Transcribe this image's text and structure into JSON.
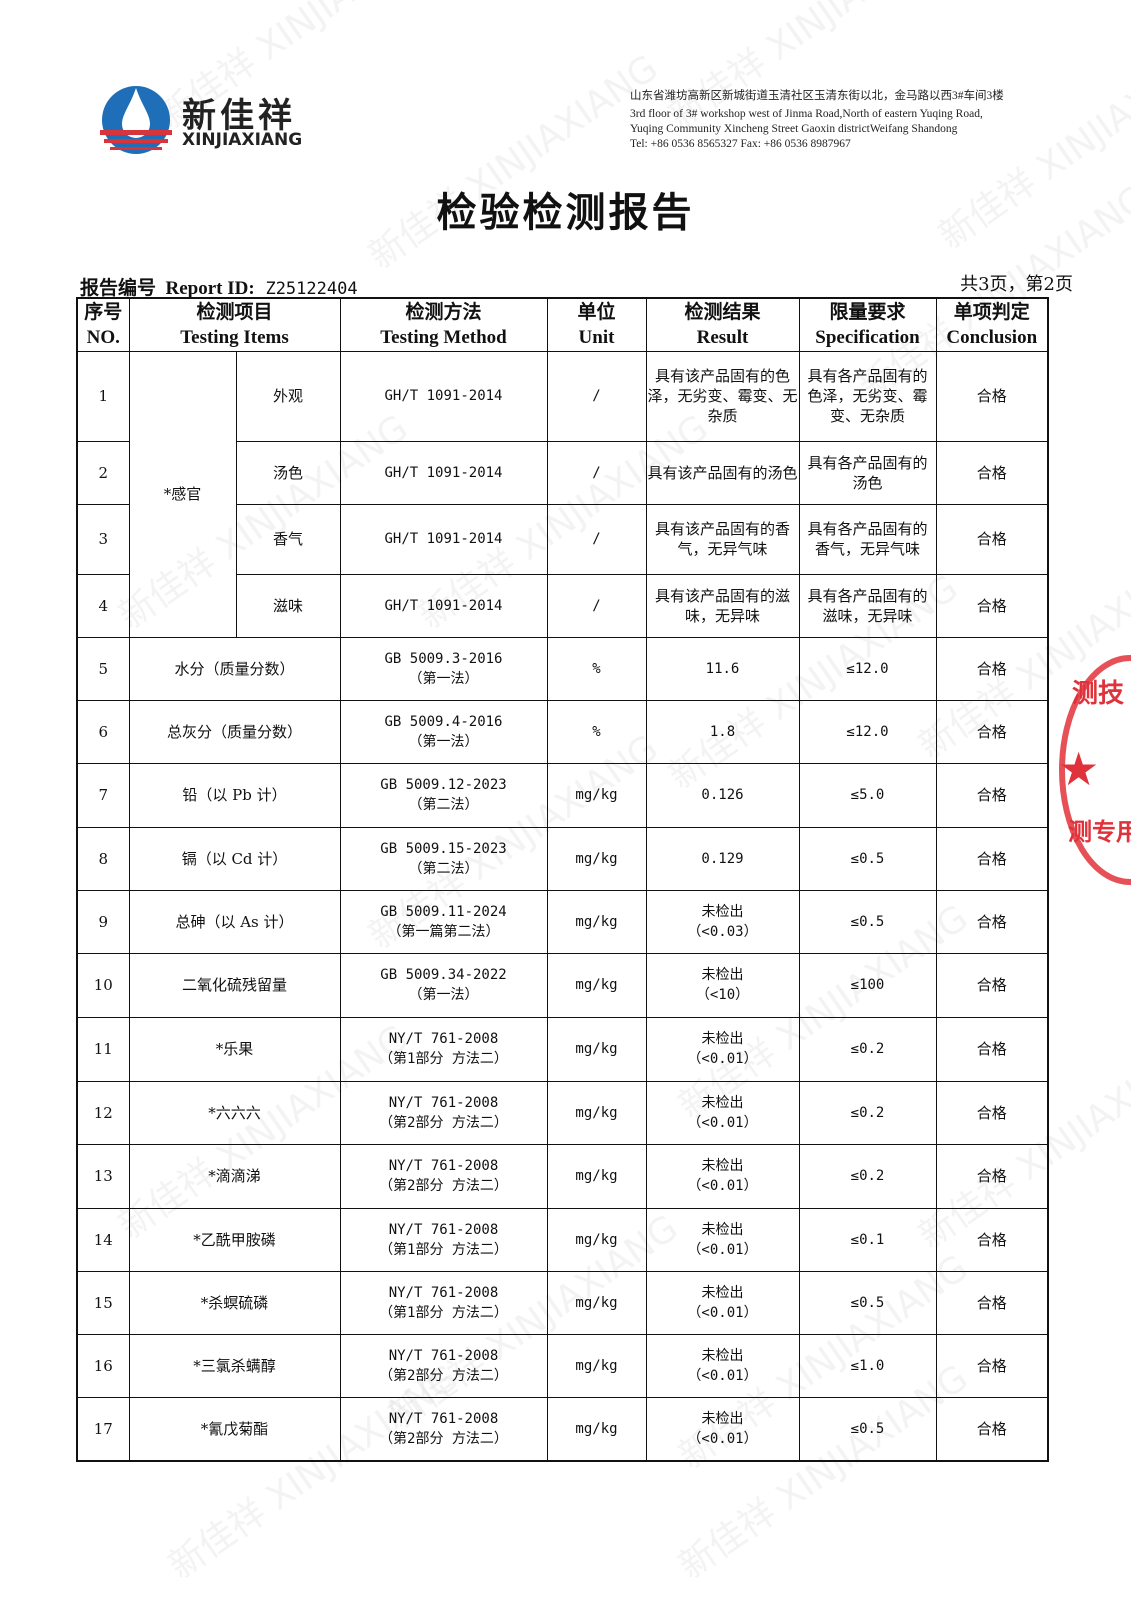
{
  "header": {
    "logo_cn": "新佳祥",
    "logo_en": "XINJIAXIANG",
    "address_cn": "山东省潍坊高新区新城街道玉清社区玉清东街以北，金马路以西3#车间3楼",
    "address_en_1": "3rd floor of 3# workshop west of Jinma Road,North of  eastern Yuqing Road,",
    "address_en_2": "Yuqing Community Xincheng Street Gaoxin districtWeifang Shandong",
    "contact": "Tel: +86 0536 8565327  Fax: +86 0536 8987967"
  },
  "title": "检验检测报告",
  "report": {
    "label_cn": "报告编号",
    "label_en": "Report ID:",
    "id": "Z25122404",
    "page": "共3页，第2页"
  },
  "columns": [
    {
      "cn": "序号",
      "en": "NO."
    },
    {
      "cn": "检测项目",
      "en": "Testing Items"
    },
    {
      "cn": "检测方法",
      "en": "Testing Method"
    },
    {
      "cn": "单位",
      "en": "Unit"
    },
    {
      "cn": "检测结果",
      "en": "Result"
    },
    {
      "cn": "限量要求",
      "en": "Specification"
    },
    {
      "cn": "单项判定",
      "en": "Conclusion"
    }
  ],
  "group": "*感官",
  "rows": [
    {
      "no": "1",
      "item": "外观",
      "method": "GH/T 1091-2014",
      "unit": "/",
      "result": "具有该产品固有的色泽，无劣变、霉变、无杂质",
      "spec": "具有各产品固有的色泽，无劣变、霉变、无杂质",
      "conclusion": "合格"
    },
    {
      "no": "2",
      "item": "汤色",
      "method": "GH/T 1091-2014",
      "unit": "/",
      "result": "具有该产品固有的汤色",
      "spec": "具有各产品固有的汤色",
      "conclusion": "合格"
    },
    {
      "no": "3",
      "item": "香气",
      "method": "GH/T 1091-2014",
      "unit": "/",
      "result": "具有该产品固有的香气，无异气味",
      "spec": "具有各产品固有的香气，无异气味",
      "conclusion": "合格"
    },
    {
      "no": "4",
      "item": "滋味",
      "method": "GH/T 1091-2014",
      "unit": "/",
      "result": "具有该产品固有的滋味，无异味",
      "spec": "具有各产品固有的滋味，无异味",
      "conclusion": "合格"
    },
    {
      "no": "5",
      "item": "水分（质量分数）",
      "method": "GB 5009.3-2016",
      "method2": "（第一法）",
      "unit": "%",
      "result": "11.6",
      "spec": "≤12.0",
      "conclusion": "合格"
    },
    {
      "no": "6",
      "item": "总灰分（质量分数）",
      "method": "GB 5009.4-2016",
      "method2": "（第一法）",
      "unit": "%",
      "result": "1.8",
      "spec": "≤12.0",
      "conclusion": "合格"
    },
    {
      "no": "7",
      "item": "铅（以 Pb 计）",
      "method": "GB 5009.12-2023",
      "method2": "（第二法）",
      "unit": "mg/kg",
      "result": "0.126",
      "spec": "≤5.0",
      "conclusion": "合格"
    },
    {
      "no": "8",
      "item": "镉（以 Cd 计）",
      "method": "GB 5009.15-2023",
      "method2": "（第二法）",
      "unit": "mg/kg",
      "result": "0.129",
      "spec": "≤0.5",
      "conclusion": "合格"
    },
    {
      "no": "9",
      "item": "总砷（以 As 计）",
      "method": "GB 5009.11-2024",
      "method2": "（第一篇第二法）",
      "unit": "mg/kg",
      "result": "未检出",
      "result2": "（<0.03）",
      "spec": "≤0.5",
      "conclusion": "合格"
    },
    {
      "no": "10",
      "item": "二氧化硫残留量",
      "method": "GB 5009.34-2022",
      "method2": "（第一法）",
      "unit": "mg/kg",
      "result": "未检出",
      "result2": "（<10）",
      "spec": "≤100",
      "conclusion": "合格"
    },
    {
      "no": "11",
      "item": "*乐果",
      "method": "NY/T 761-2008",
      "method2": "（第1部分 方法二）",
      "unit": "mg/kg",
      "result": "未检出",
      "result2": "（<0.01）",
      "spec": "≤0.2",
      "conclusion": "合格"
    },
    {
      "no": "12",
      "item": "*六六六",
      "method": "NY/T 761-2008",
      "method2": "（第2部分 方法二）",
      "unit": "mg/kg",
      "result": "未检出",
      "result2": "（<0.01）",
      "spec": "≤0.2",
      "conclusion": "合格"
    },
    {
      "no": "13",
      "item": "*滴滴涕",
      "method": "NY/T 761-2008",
      "method2": "（第2部分 方法二）",
      "unit": "mg/kg",
      "result": "未检出",
      "result2": "（<0.01）",
      "spec": "≤0.2",
      "conclusion": "合格"
    },
    {
      "no": "14",
      "item": "*乙酰甲胺磷",
      "method": "NY/T 761-2008",
      "method2": "（第1部分 方法二）",
      "unit": "mg/kg",
      "result": "未检出",
      "result2": "（<0.01）",
      "spec": "≤0.1",
      "conclusion": "合格"
    },
    {
      "no": "15",
      "item": "*杀螟硫磷",
      "method": "NY/T 761-2008",
      "method2": "（第1部分 方法二）",
      "unit": "mg/kg",
      "result": "未检出",
      "result2": "（<0.01）",
      "spec": "≤0.5",
      "conclusion": "合格"
    },
    {
      "no": "16",
      "item": "*三氯杀螨醇",
      "method": "NY/T 761-2008",
      "method2": "（第2部分 方法二）",
      "unit": "mg/kg",
      "result": "未检出",
      "result2": "（<0.01）",
      "spec": "≤1.0",
      "conclusion": "合格"
    },
    {
      "no": "17",
      "item": "*氰戊菊酯",
      "method": "NY/T 761-2008",
      "method2": "（第2部分 方法二）",
      "unit": "mg/kg",
      "result": "未检出",
      "result2": "（<0.01）",
      "spec": "≤0.5",
      "conclusion": "合格"
    }
  ],
  "seal_text": "检测技术专用章",
  "watermark": "新佳祥 XINJIAXIANG",
  "colors": {
    "logo_blue": "#1f6fb8",
    "logo_red": "#d8343c",
    "seal": "#e0323a"
  }
}
